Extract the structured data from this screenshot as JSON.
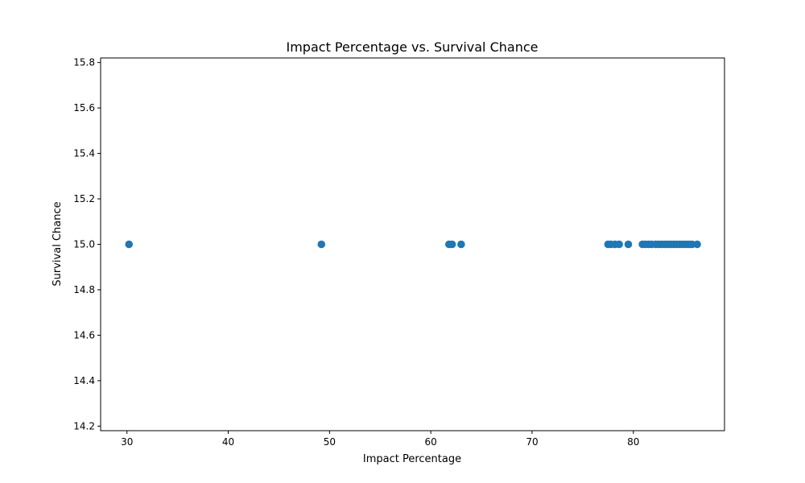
{
  "chart_data": {
    "type": "scatter",
    "title": "Impact Percentage vs. Survival Chance",
    "xlabel": "Impact Percentage",
    "ylabel": "Survival Chance",
    "xlim": [
      27.4,
      89.0
    ],
    "ylim": [
      14.18,
      15.82
    ],
    "x_ticks": [
      30,
      40,
      50,
      60,
      70,
      80
    ],
    "y_ticks": [
      14.2,
      14.4,
      14.6,
      14.8,
      15.0,
      15.2,
      15.4,
      15.6,
      15.8
    ],
    "grid": false,
    "marker_color": "#1f77b4",
    "points": [
      {
        "x": 30.2,
        "y": 15.0
      },
      {
        "x": 49.2,
        "y": 15.0
      },
      {
        "x": 61.8,
        "y": 15.0
      },
      {
        "x": 62.1,
        "y": 15.0
      },
      {
        "x": 63.0,
        "y": 15.0
      },
      {
        "x": 77.5,
        "y": 15.0
      },
      {
        "x": 77.8,
        "y": 15.0
      },
      {
        "x": 78.2,
        "y": 15.0
      },
      {
        "x": 78.6,
        "y": 15.0
      },
      {
        "x": 79.5,
        "y": 15.0
      },
      {
        "x": 80.9,
        "y": 15.0
      },
      {
        "x": 81.2,
        "y": 15.0
      },
      {
        "x": 81.5,
        "y": 15.0
      },
      {
        "x": 81.8,
        "y": 15.0
      },
      {
        "x": 82.2,
        "y": 15.0
      },
      {
        "x": 82.5,
        "y": 15.0
      },
      {
        "x": 82.8,
        "y": 15.0
      },
      {
        "x": 83.1,
        "y": 15.0
      },
      {
        "x": 83.4,
        "y": 15.0
      },
      {
        "x": 83.7,
        "y": 15.0
      },
      {
        "x": 84.0,
        "y": 15.0
      },
      {
        "x": 84.3,
        "y": 15.0
      },
      {
        "x": 84.6,
        "y": 15.0
      },
      {
        "x": 84.9,
        "y": 15.0
      },
      {
        "x": 85.2,
        "y": 15.0
      },
      {
        "x": 85.5,
        "y": 15.0
      },
      {
        "x": 85.8,
        "y": 15.0
      },
      {
        "x": 86.3,
        "y": 15.0
      }
    ]
  }
}
